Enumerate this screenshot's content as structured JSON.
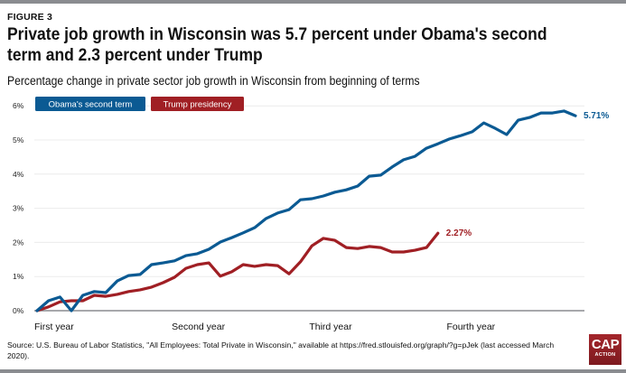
{
  "figure_label": "FIGURE 3",
  "title": "Private job growth in Wisconsin was 5.7 percent under Obama's second term and 2.3 percent under Trump",
  "subtitle": "Percentage change in private sector job growth in Wisconsin from beginning of terms",
  "source": "Source: U.S. Bureau of Labor Statistics, \"All Employees: Total Private in Wisconsin,\" available at https://fred.stlouisfed.org/graph/?g=pJek (last accessed March 2020).",
  "logo": {
    "main": "CAP",
    "sub": "ACTION"
  },
  "chart_data": {
    "type": "line",
    "title": "Private job growth in Wisconsin was 5.7 percent under Obama's second term and 2.3 percent under Trump",
    "subtitle": "Percentage change in private sector job growth in Wisconsin from beginning of terms",
    "xlabel": "",
    "ylabel": "",
    "x_unit": "months from beginning of term",
    "x_tick_labels": [
      {
        "label": "First year",
        "month": 0
      },
      {
        "label": "Second year",
        "month": 12
      },
      {
        "label": "Third year",
        "month": 24
      },
      {
        "label": "Fourth year",
        "month": 36
      }
    ],
    "xlim": [
      0,
      47
    ],
    "y_ticks": [
      0,
      1,
      2,
      3,
      4,
      5,
      6
    ],
    "y_tick_labels": [
      "0%",
      "1%",
      "2%",
      "3%",
      "4%",
      "5%",
      "6%"
    ],
    "ylim": [
      0,
      6
    ],
    "grid": true,
    "legend_position": "top-left",
    "series": [
      {
        "name": "Obama's second term",
        "color": "#0b5a93",
        "end_label": "5.71%",
        "values": [
          0,
          0.29,
          0.4,
          0,
          0.45,
          0.56,
          0.53,
          0.87,
          1.03,
          1.06,
          1.35,
          1.4,
          1.46,
          1.61,
          1.67,
          1.8,
          2.01,
          2.14,
          2.28,
          2.43,
          2.7,
          2.86,
          2.96,
          3.25,
          3.28,
          3.36,
          3.47,
          3.54,
          3.65,
          3.94,
          3.97,
          4.21,
          4.42,
          4.52,
          4.76,
          4.89,
          5.03,
          5.13,
          5.24,
          5.5,
          5.34,
          5.16,
          5.58,
          5.66,
          5.79,
          5.79,
          5.85,
          5.71
        ]
      },
      {
        "name": "Trump presidency",
        "color": "#a01f24",
        "end_label": "2.27%",
        "values": [
          0,
          0.11,
          0.26,
          0.29,
          0.29,
          0.45,
          0.42,
          0.48,
          0.56,
          0.61,
          0.69,
          0.82,
          0.98,
          1.24,
          1.35,
          1.4,
          1.01,
          1.14,
          1.35,
          1.3,
          1.35,
          1.32,
          1.08,
          1.43,
          1.9,
          2.12,
          2.06,
          1.85,
          1.82,
          1.88,
          1.85,
          1.72,
          1.72,
          1.77,
          1.85,
          2.27
        ]
      }
    ]
  }
}
